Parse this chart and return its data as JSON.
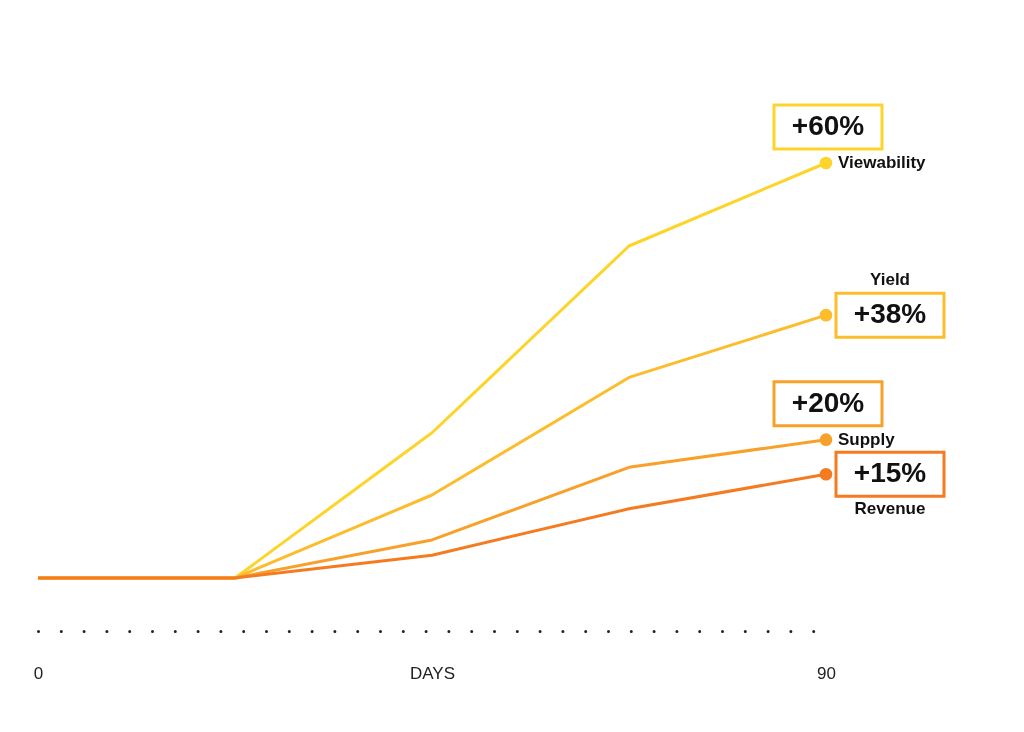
{
  "chart_data": {
    "type": "line",
    "xlabel": "DAYS",
    "x": [
      0,
      22.5,
      45,
      67.5,
      90
    ],
    "xlim": [
      0,
      90
    ],
    "xticks": [
      0,
      90
    ],
    "grid": false,
    "series": [
      {
        "name": "Viewability",
        "color": "#fdd42a",
        "values": [
          0,
          0,
          21,
          48,
          60
        ],
        "value_labels": [
          null,
          null,
          null,
          null,
          "+60%"
        ]
      },
      {
        "name": "Yield",
        "color": "#fbbd2b",
        "values": [
          0,
          0,
          12,
          29,
          38
        ],
        "value_labels": [
          null,
          null,
          null,
          null,
          "+38%"
        ]
      },
      {
        "name": "Supply",
        "color": "#f8a12a",
        "values": [
          0,
          0,
          5.5,
          16,
          20
        ],
        "value_labels": [
          null,
          null,
          null,
          null,
          "+20%"
        ]
      },
      {
        "name": "Revenue",
        "color": "#f47b20",
        "values": [
          0,
          0,
          3.3,
          10,
          15
        ],
        "value_labels": [
          null,
          null,
          null,
          null,
          "+15%"
        ]
      }
    ]
  }
}
